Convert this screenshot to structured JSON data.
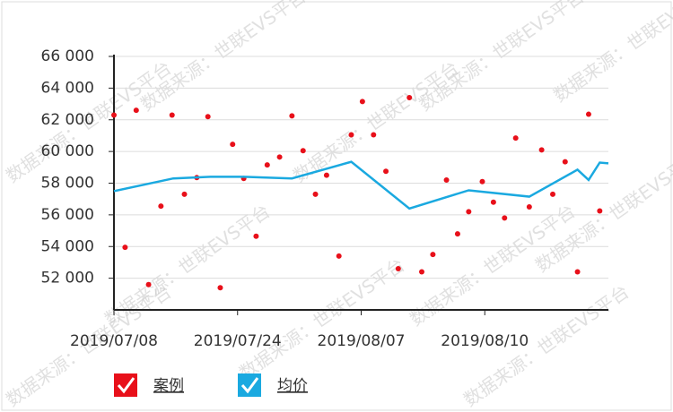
{
  "chart_data": {
    "type": "scatter",
    "watermark": "数据来源：世联EVS平台",
    "xlim": [
      0,
      4
    ],
    "xticks": [
      {
        "value": 0,
        "label": "2019/07/08"
      },
      {
        "value": 1,
        "label": "2019/07/24"
      },
      {
        "value": 2,
        "label": "2019/08/07"
      },
      {
        "value": 3,
        "label": "2019/08/10"
      }
    ],
    "ylim": [
      50000,
      66000
    ],
    "yticks": [
      {
        "value": 52000,
        "label": "52 000"
      },
      {
        "value": 54000,
        "label": "54 000"
      },
      {
        "value": 56000,
        "label": "56 000"
      },
      {
        "value": 58000,
        "label": "58 000"
      },
      {
        "value": 60000,
        "label": "60 000"
      },
      {
        "value": 62000,
        "label": "62 000"
      },
      {
        "value": 64000,
        "label": "64 000"
      },
      {
        "value": 66000,
        "label": "66 000"
      }
    ],
    "grid": true,
    "series": [
      {
        "name": "案例",
        "type": "scatter",
        "color": "#e8101a",
        "x": [
          0,
          0.09,
          0.18,
          0.28,
          0.38,
          0.47,
          0.57,
          0.67,
          0.76,
          0.86,
          0.96,
          1.05,
          1.15,
          1.24,
          1.34,
          1.44,
          1.53,
          1.63,
          1.72,
          1.82,
          1.92,
          2.01,
          2.1,
          2.2,
          2.3,
          2.39,
          2.49,
          2.58,
          2.69,
          2.78,
          2.87,
          2.98,
          3.07,
          3.16,
          3.25,
          3.36,
          3.46,
          3.55,
          3.65,
          3.75,
          3.84,
          3.93
        ],
        "values": [
          62300,
          53950,
          62600,
          51600,
          56550,
          62300,
          57300,
          58350,
          62200,
          51400,
          60450,
          58300,
          54650,
          59150,
          59650,
          62250,
          60050,
          57300,
          58500,
          53400,
          61050,
          63150,
          61050,
          58750,
          52600,
          63400,
          52400,
          53500,
          58200,
          54800,
          56200,
          58100,
          56800,
          55800,
          60850,
          56500,
          60100,
          57300,
          59350,
          52400,
          62350,
          56250
        ]
      },
      {
        "name": "均价",
        "type": "line",
        "color": "#1aa9e0",
        "x": [
          0,
          0.48,
          0.78,
          1.05,
          1.23,
          1.44,
          1.92,
          2.39,
          2.87,
          3.36,
          3.75,
          3.84,
          3.93,
          4.0
        ],
        "values": [
          57500,
          58300,
          58400,
          58400,
          58350,
          58300,
          59350,
          56400,
          57550,
          57150,
          58850,
          58200,
          59300,
          59250
        ]
      }
    ]
  }
}
